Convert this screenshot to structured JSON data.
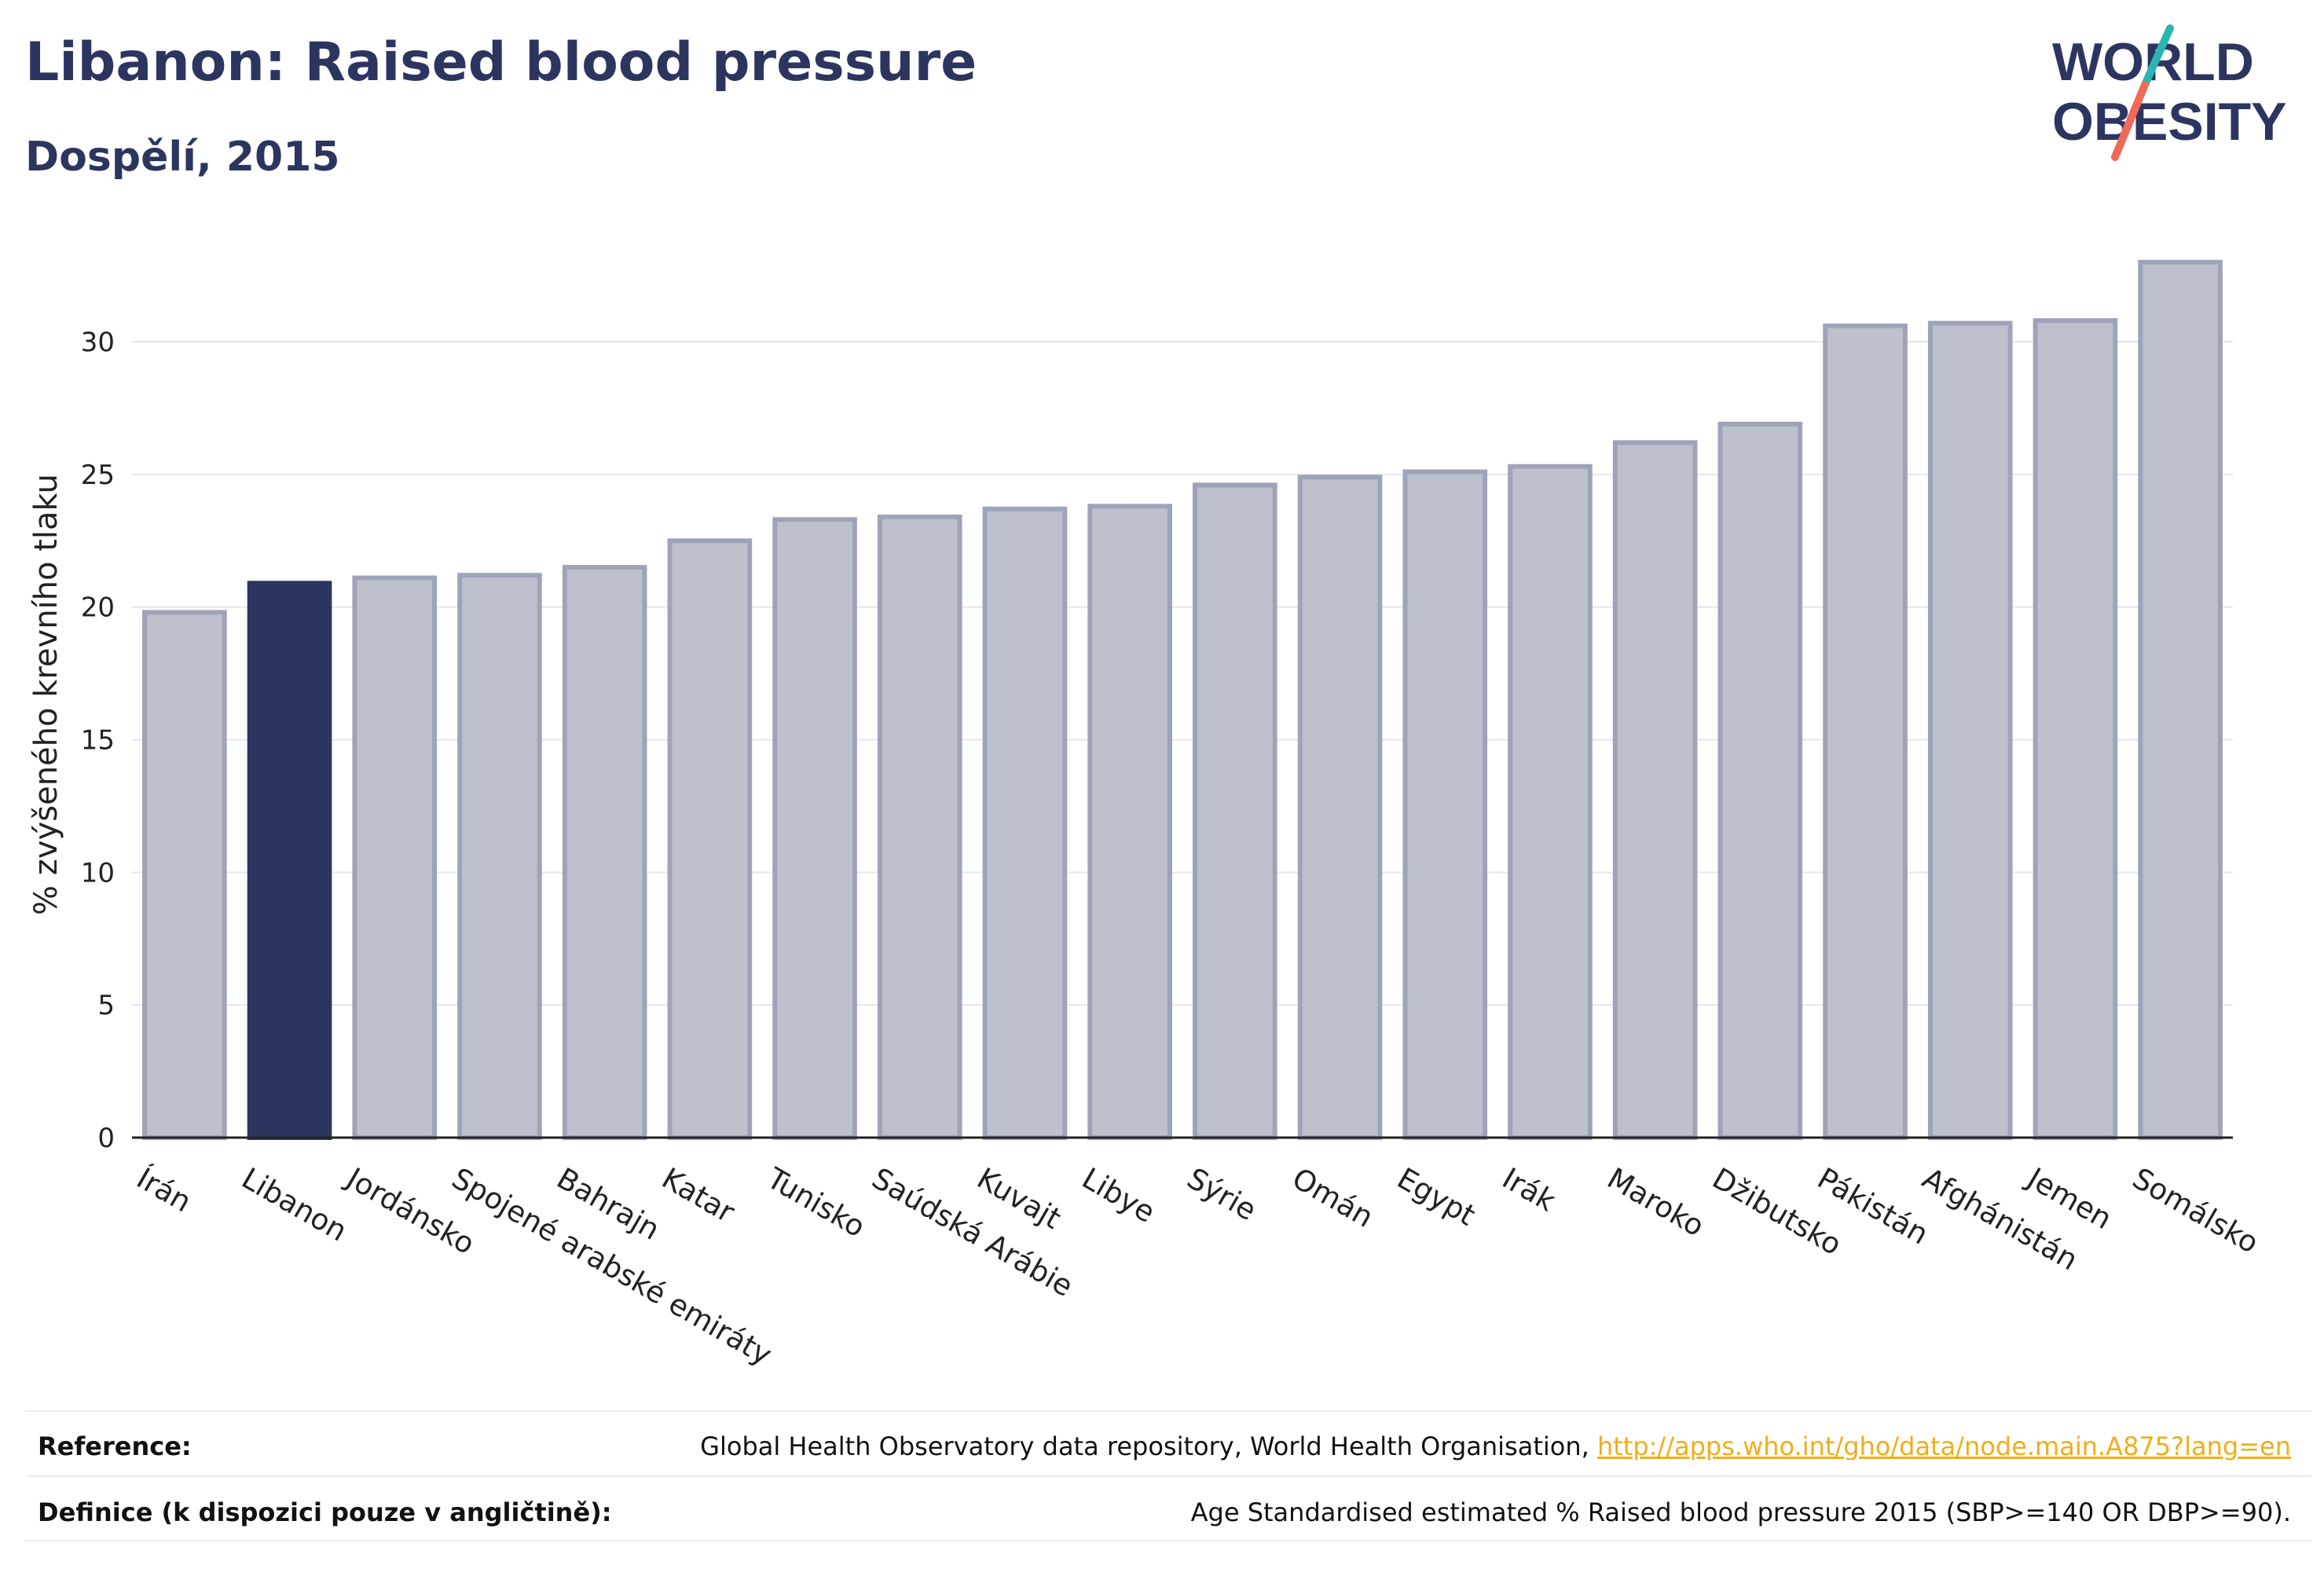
{
  "header": {
    "title": "Libanon: Raised blood pressure",
    "subtitle": "Dospělí, 2015"
  },
  "logo": {
    "line1": "WORLD",
    "line2": "OBESITY",
    "colors": {
      "text": "#2c3560",
      "slash_top": "#2bb5b0",
      "slash_bottom": "#f06a58"
    }
  },
  "chart_data": {
    "type": "bar",
    "title": "Libanon: Raised blood pressure",
    "subtitle": "Dospělí, 2015",
    "ylabel": "% zvýšeného krevního tlaku",
    "xlabel": "",
    "ylim": [
      0,
      34
    ],
    "yticks": [
      0,
      5,
      10,
      15,
      20,
      25,
      30
    ],
    "grid": true,
    "highlight": "Libanon",
    "colors": {
      "bar": "#bdc1ce",
      "bar_edge": "#9ea3b8",
      "highlight": "#2c3560",
      "axis": "#222222",
      "grid": "#e4e6ec"
    },
    "categories": [
      "Írán",
      "Libanon",
      "Jordánsko",
      "Spojené arabské emiráty",
      "Bahrajn",
      "Katar",
      "Tunisko",
      "Saúdská Arábie",
      "Kuvajt",
      "Libye",
      "Sýrie",
      "Omán",
      "Egypt",
      "Irák",
      "Maroko",
      "Džibutsko",
      "Pákistán",
      "Afghánistán",
      "Jemen",
      "Somálsko"
    ],
    "values": [
      19.8,
      20.9,
      21.1,
      21.2,
      21.5,
      22.5,
      23.3,
      23.4,
      23.7,
      23.8,
      24.6,
      24.9,
      25.1,
      25.3,
      26.2,
      26.9,
      30.6,
      30.7,
      30.8,
      33.0
    ]
  },
  "footer": {
    "reference_label": "Reference:",
    "reference_text": "Global Health Observatory data repository, World Health Organisation, ",
    "reference_link": "http://apps.who.int/gho/data/node.main.A875?lang=en",
    "definition_label": "Definice (k dispozici pouze v angličtině):",
    "definition_text": "Age Standardised estimated % Raised blood pressure 2015 (SBP>=140 OR DBP>=90)."
  }
}
